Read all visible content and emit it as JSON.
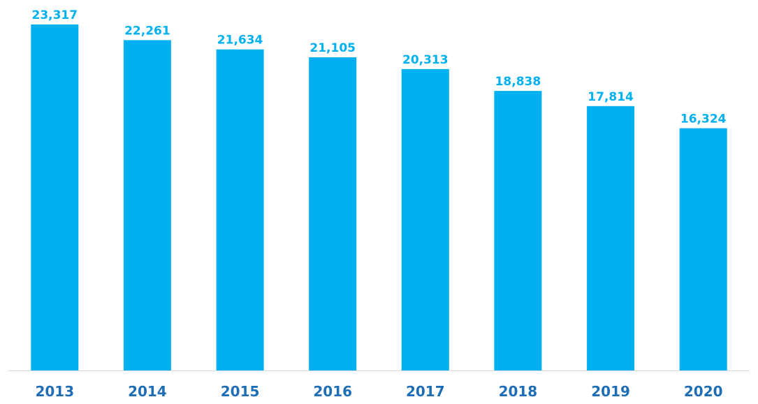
{
  "chart_data": {
    "type": "bar",
    "categories": [
      "2013",
      "2014",
      "2015",
      "2016",
      "2017",
      "2018",
      "2019",
      "2020"
    ],
    "values": [
      23317,
      22261,
      21634,
      21105,
      20313,
      18838,
      17814,
      16324
    ],
    "value_labels": [
      "23,317",
      "22,261",
      "21,634",
      "21,105",
      "20,313",
      "18,838",
      "17,814",
      "16,324"
    ],
    "title": "",
    "xlabel": "",
    "ylabel": "",
    "ylim": [
      0,
      23317
    ],
    "grid": false,
    "legend": "none",
    "colors": {
      "bar": "#00B0F0",
      "value_label": "#00B0F0",
      "category_label": "#1F6EB5",
      "baseline": "#D9D9D9"
    }
  }
}
